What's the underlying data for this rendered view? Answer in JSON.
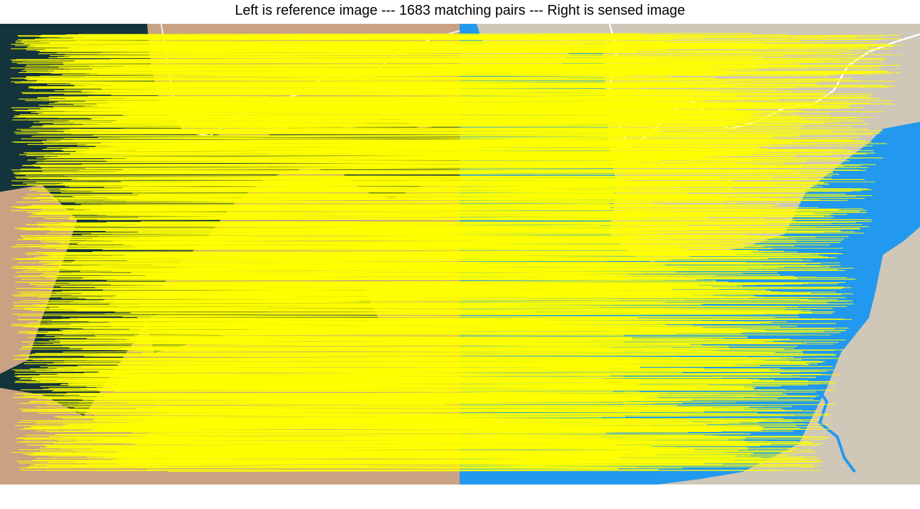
{
  "figure": {
    "title": "Left is reference image --- 1683 matching pairs --- Right is sensed image",
    "match_count": 1683,
    "line_color": "#ffff00"
  },
  "reference_image": {
    "kind": "satellite",
    "colors": {
      "water": "#14343c",
      "land": "#c9a284",
      "road": "#f2f2f2"
    }
  },
  "sensed_image": {
    "kind": "map",
    "colors": {
      "water": "#2299ee",
      "land": "#cfc7b8",
      "road": "#ffffff"
    }
  }
}
